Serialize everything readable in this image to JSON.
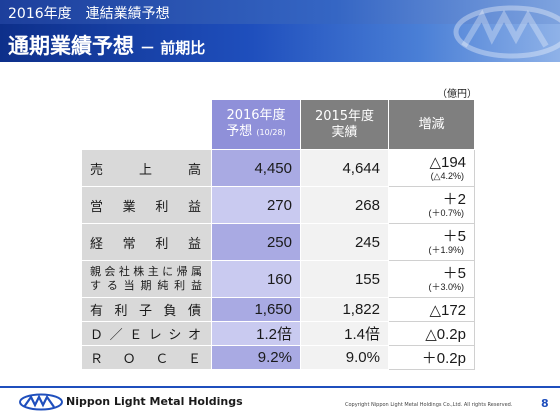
{
  "header": {
    "super_title": "2016年度　連結業績予想",
    "title": "通期業績予想",
    "subtitle": "－ 前期比"
  },
  "unit_label": "（億円）",
  "table": {
    "columns": {
      "forecast_2016_line1": "2016年度",
      "forecast_2016_line2": "予想",
      "forecast_2016_note": "(10/28)",
      "actual_2015_line1": "2015年度",
      "actual_2015_line2": "実績",
      "diff": "増減"
    },
    "rows": [
      {
        "label": "売　上　高",
        "v2016": "4,450",
        "v2015": "4,644",
        "diff": "△194",
        "diff_pct": "(△4.2%)"
      },
      {
        "label": "営　業　利　益",
        "v2016": "270",
        "v2015": "268",
        "diff": "＋2",
        "diff_pct": "(＋0.7%)"
      },
      {
        "label": "経　常　利　益",
        "v2016": "250",
        "v2015": "245",
        "diff": "＋5",
        "diff_pct": "(＋1.9%)"
      },
      {
        "label_line1": "親会社株主に帰属",
        "label_line2": "する当期純利益",
        "v2016": "160",
        "v2015": "155",
        "diff": "＋5",
        "diff_pct": "(＋3.0%)"
      },
      {
        "label": "有利子負債",
        "v2016": "1,650",
        "v2015": "1,822",
        "diff": "△172"
      },
      {
        "label": "Ｄ／Ｅレシオ",
        "v2016": "1.2倍",
        "v2015": "1.4倍",
        "diff": "△0.2p"
      },
      {
        "label": "ＲＯＣＥ",
        "v2016": "9.2%",
        "v2015": "9.0%",
        "diff": "＋0.2p"
      }
    ]
  },
  "footer": {
    "brand": "Nippon Light Metal Holdings",
    "copyright": "Copyright Nippon Light Metal Holdings Co.,Ltd. All rights Reserved.",
    "page_number": "8"
  },
  "colors": {
    "banner_dark": "#0d2f8a",
    "header_2016": "#8f90d9",
    "header_gray": "#7f7f7f",
    "cell_2016": "#a9aae3",
    "cell_label": "#d9d9d9"
  }
}
